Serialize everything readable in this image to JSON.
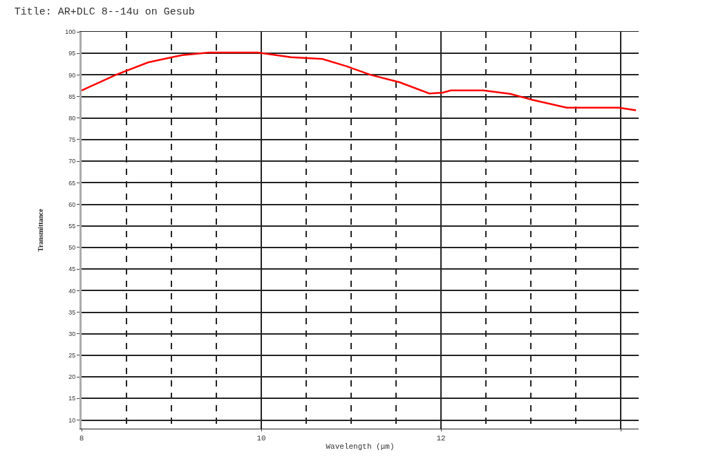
{
  "chart_data": {
    "type": "line",
    "title": "Title: AR+DLC 8--14u on Gesub",
    "xlabel": "Wavelength (μm)",
    "ylabel": "Transmittance",
    "x": [
      8.0,
      8.38,
      8.74,
      9.12,
      9.42,
      9.96,
      10.33,
      10.68,
      10.95,
      11.22,
      11.54,
      11.87,
      12.02,
      12.11,
      12.47,
      12.77,
      13.02,
      13.4,
      13.98,
      14.17
    ],
    "series": [
      {
        "color": "#ff0000",
        "values": [
          86.4,
          90,
          92.9,
          94.6,
          95.2,
          95.2,
          94.1,
          93.7,
          92,
          90,
          88.3,
          85.7,
          85.9,
          86.4,
          86.4,
          85.6,
          84.2,
          82.4,
          82.4,
          81.8
        ]
      }
    ],
    "xlim": [
      8,
      14.2
    ],
    "xticks": [
      8,
      10,
      12,
      {
        "value": 14,
        "label": null
      }
    ],
    "ylim": [
      8,
      100
    ],
    "yticks": [
      10,
      15,
      20,
      25,
      30,
      35,
      40,
      45,
      50,
      55,
      60,
      65,
      70,
      75,
      80,
      85,
      90,
      95,
      100
    ],
    "grid": true,
    "marker": "none",
    "line_style": "solid"
  }
}
